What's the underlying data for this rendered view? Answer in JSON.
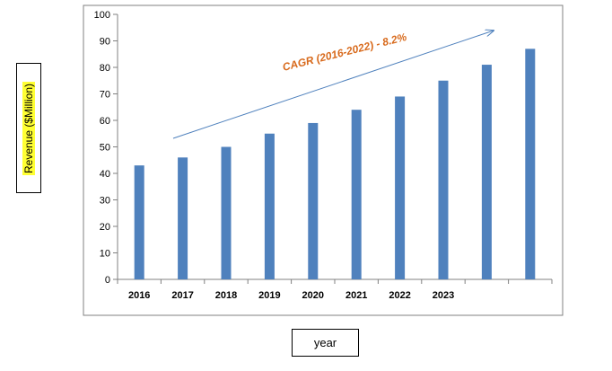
{
  "chart_data": {
    "type": "bar",
    "categories": [
      "2016",
      "2017",
      "2018",
      "2019",
      "2020",
      "2021",
      "2022",
      "2023",
      "",
      ""
    ],
    "values": [
      43,
      46,
      50,
      55,
      59,
      64,
      69,
      75,
      81,
      87
    ],
    "ylabel": "Revenue ($Million)",
    "xlabel": "year",
    "ylim": [
      0,
      100
    ],
    "yticks": [
      0,
      10,
      20,
      30,
      40,
      50,
      60,
      70,
      80,
      90,
      100
    ],
    "annotation": "CAGR (2016-2022) - 8.2%",
    "bar_color": "#4f81bd",
    "annotation_color": "#d86a1c",
    "arrow_color": "#4f81bd",
    "legend": "none",
    "grid": false
  }
}
